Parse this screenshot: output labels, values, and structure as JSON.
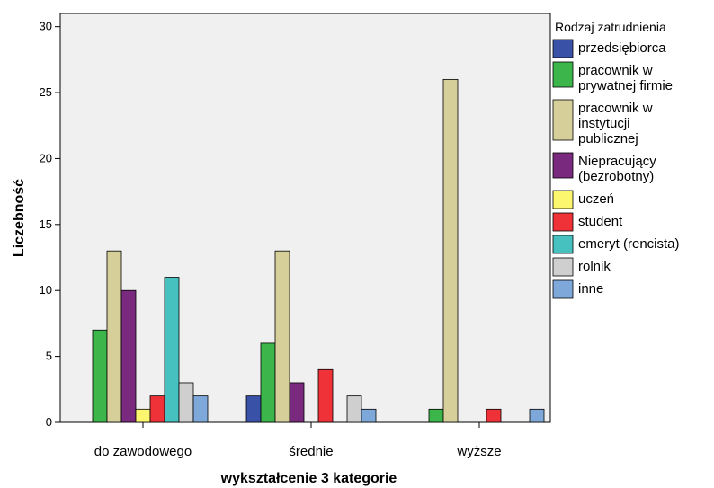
{
  "chart_data": {
    "type": "bar",
    "title": "",
    "xlabel": "wykształcenie 3 kategorie",
    "ylabel": "Liczebność",
    "ylim": [
      0,
      31
    ],
    "yticks": [
      0,
      5,
      10,
      15,
      20,
      25,
      30
    ],
    "grid": false,
    "legend_title": "Rodzaj zatrudnienia",
    "legend_position": "right",
    "categories": [
      "do zawodowego",
      "średnie",
      "wyższe"
    ],
    "series": [
      {
        "name": "przedsiębiorca",
        "label_lines": [
          "przedsiębiorca"
        ],
        "color": "#3a51a8",
        "values": [
          0,
          2,
          0
        ]
      },
      {
        "name": "pracownik w prywatnej firmie",
        "label_lines": [
          "pracownik w",
          "prywatnej firmie"
        ],
        "color": "#3cb54a",
        "values": [
          7,
          6,
          1
        ]
      },
      {
        "name": "pracownik w instytucji publicznej",
        "label_lines": [
          "pracownik w",
          "instytucji",
          "publicznej"
        ],
        "color": "#d6cf9a",
        "values": [
          13,
          13,
          26
        ]
      },
      {
        "name": "Niepracujący (bezrobotny)",
        "label_lines": [
          "Niepracujący",
          "(bezrobotny)"
        ],
        "color": "#7a2a7e",
        "values": [
          10,
          3,
          0
        ]
      },
      {
        "name": "uczeń",
        "label_lines": [
          "uczeń"
        ],
        "color": "#fbf66e",
        "values": [
          1,
          0,
          0
        ]
      },
      {
        "name": "student",
        "label_lines": [
          "student"
        ],
        "color": "#ee3237",
        "values": [
          2,
          4,
          1
        ]
      },
      {
        "name": "emeryt (rencista)",
        "label_lines": [
          "emeryt (rencista)"
        ],
        "color": "#47c1c0",
        "values": [
          11,
          0,
          0
        ]
      },
      {
        "name": "rolnik",
        "label_lines": [
          "rolnik"
        ],
        "color": "#cfcfcf",
        "values": [
          3,
          2,
          0
        ]
      },
      {
        "name": "inne",
        "label_lines": [
          "inne"
        ],
        "color": "#7ea8d9",
        "values": [
          2,
          1,
          1
        ]
      }
    ]
  }
}
